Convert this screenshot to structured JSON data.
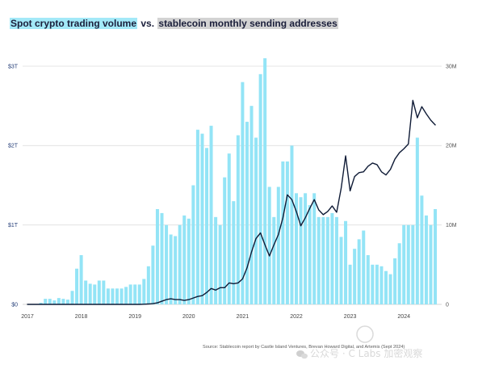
{
  "chart_data": {
    "type": "bar",
    "title_segments": [
      {
        "text": "Spot crypto trading volume",
        "highlight": "#a3e9f8"
      },
      {
        "text": "vs.",
        "highlight": ""
      },
      {
        "text": "stablecoin monthly sending addresses",
        "highlight": "#d3d3d3"
      }
    ],
    "x": [
      "2017-01",
      "2017-02",
      "2017-03",
      "2017-04",
      "2017-05",
      "2017-06",
      "2017-07",
      "2017-08",
      "2017-09",
      "2017-10",
      "2017-11",
      "2017-12",
      "2018-01",
      "2018-02",
      "2018-03",
      "2018-04",
      "2018-05",
      "2018-06",
      "2018-07",
      "2018-08",
      "2018-09",
      "2018-10",
      "2018-11",
      "2018-12",
      "2019-01",
      "2019-02",
      "2019-03",
      "2019-04",
      "2019-05",
      "2019-06",
      "2019-07",
      "2019-08",
      "2019-09",
      "2019-10",
      "2019-11",
      "2019-12",
      "2020-01",
      "2020-02",
      "2020-03",
      "2020-04",
      "2020-05",
      "2020-06",
      "2020-07",
      "2020-08",
      "2020-09",
      "2020-10",
      "2020-11",
      "2020-12",
      "2021-01",
      "2021-02",
      "2021-03",
      "2021-04",
      "2021-05",
      "2021-06",
      "2021-07",
      "2021-08",
      "2021-09",
      "2021-10",
      "2021-11",
      "2021-12",
      "2022-01",
      "2022-02",
      "2022-03",
      "2022-04",
      "2022-05",
      "2022-06",
      "2022-07",
      "2022-08",
      "2022-09",
      "2022-10",
      "2022-11",
      "2022-12",
      "2023-01",
      "2023-02",
      "2023-03",
      "2023-04",
      "2023-05",
      "2023-06",
      "2023-07",
      "2023-08",
      "2023-09",
      "2023-10",
      "2023-11",
      "2023-12",
      "2024-01",
      "2024-02",
      "2024-03",
      "2024-04",
      "2024-05",
      "2024-06",
      "2024-07",
      "2024-08"
    ],
    "xticks": [
      "2017",
      "2018",
      "2019",
      "2020",
      "2021",
      "2022",
      "2023",
      "2024"
    ],
    "series": [
      {
        "name": "Spot crypto trading volume",
        "type": "bar",
        "axis": "left",
        "color": "#93e4f6",
        "values": [
          0,
          0,
          0,
          0.02,
          0.07,
          0.07,
          0.05,
          0.08,
          0.07,
          0.06,
          0.17,
          0.45,
          0.62,
          0.3,
          0.26,
          0.25,
          0.3,
          0.3,
          0.2,
          0.2,
          0.2,
          0.2,
          0.22,
          0.25,
          0.25,
          0.25,
          0.32,
          0.48,
          0.74,
          1.2,
          1.15,
          1.0,
          0.88,
          0.86,
          1.0,
          1.12,
          1.08,
          1.5,
          2.2,
          2.15,
          1.97,
          2.25,
          1.1,
          1.0,
          1.6,
          1.9,
          1.3,
          2.13,
          2.8,
          2.3,
          2.5,
          2.1,
          2.9,
          3.1,
          1.48,
          1.1,
          1.48,
          1.8,
          1.8,
          2.0,
          1.4,
          1.35,
          1.4,
          1.25,
          1.4,
          1.1,
          1.1,
          1.1,
          1.15,
          1.1,
          0.85,
          1.05,
          0.5,
          0.7,
          0.82,
          0.93,
          0.62,
          0.5,
          0.5,
          0.48,
          0.42,
          0.38,
          0.58,
          0.77,
          1.0,
          1.0,
          1.0,
          2.1,
          1.37,
          1.12,
          1.0,
          1.2
        ]
      },
      {
        "name": "stablecoin monthly sending addresses",
        "type": "line",
        "axis": "right",
        "color": "#0f1b36",
        "values": [
          0,
          0,
          0,
          0,
          0,
          0,
          0,
          0,
          0,
          0,
          0,
          0,
          0,
          0,
          0,
          0,
          0,
          0,
          0,
          0,
          0,
          0,
          0,
          0,
          0,
          0,
          0.02,
          0.05,
          0.1,
          0.2,
          0.4,
          0.6,
          0.7,
          0.6,
          0.6,
          0.5,
          0.6,
          0.8,
          1.0,
          1.1,
          1.5,
          2.0,
          1.8,
          2.1,
          2.1,
          2.7,
          2.6,
          2.7,
          3.2,
          4.6,
          6.6,
          8.3,
          9.0,
          7.5,
          6.1,
          7.5,
          8.8,
          10.9,
          13.8,
          13.2,
          11.7,
          9.9,
          10.9,
          12.1,
          13.2,
          11.9,
          11.3,
          11.7,
          12.4,
          11.6,
          14.6,
          18.7,
          14.3,
          16.1,
          16.6,
          16.7,
          17.4,
          17.8,
          17.6,
          16.7,
          16.3,
          17.0,
          18.3,
          19.1,
          19.6,
          20.2,
          25.7,
          23.5,
          24.9,
          24.0,
          23.2,
          22.6
        ]
      }
    ],
    "left_axis": {
      "ylim": [
        0,
        3
      ],
      "ticks": [
        {
          "value": 0,
          "label": "$0"
        },
        {
          "value": 1,
          "label": "$1T"
        },
        {
          "value": 2,
          "label": "$2T"
        },
        {
          "value": 3,
          "label": "$3T"
        }
      ]
    },
    "right_axis": {
      "ylim": [
        0,
        30
      ],
      "ticks": [
        {
          "value": 0,
          "label": "0"
        },
        {
          "value": 10,
          "label": "10M"
        },
        {
          "value": 20,
          "label": "20M"
        },
        {
          "value": 30,
          "label": "30M"
        }
      ]
    },
    "grid": true,
    "colors": {
      "title_text": "#1b1f3b",
      "gridline": "#dedede",
      "baseline": "#c9c9c9"
    }
  },
  "footer": {
    "source": "Source: Stablecoin report by Castle Island Ventures, Brevan Howard Digital, and Artemis (Sept 2024)"
  },
  "watermark": {
    "text": "公众号 · C Labs 加密观察",
    "icon": "wechat-icon"
  }
}
